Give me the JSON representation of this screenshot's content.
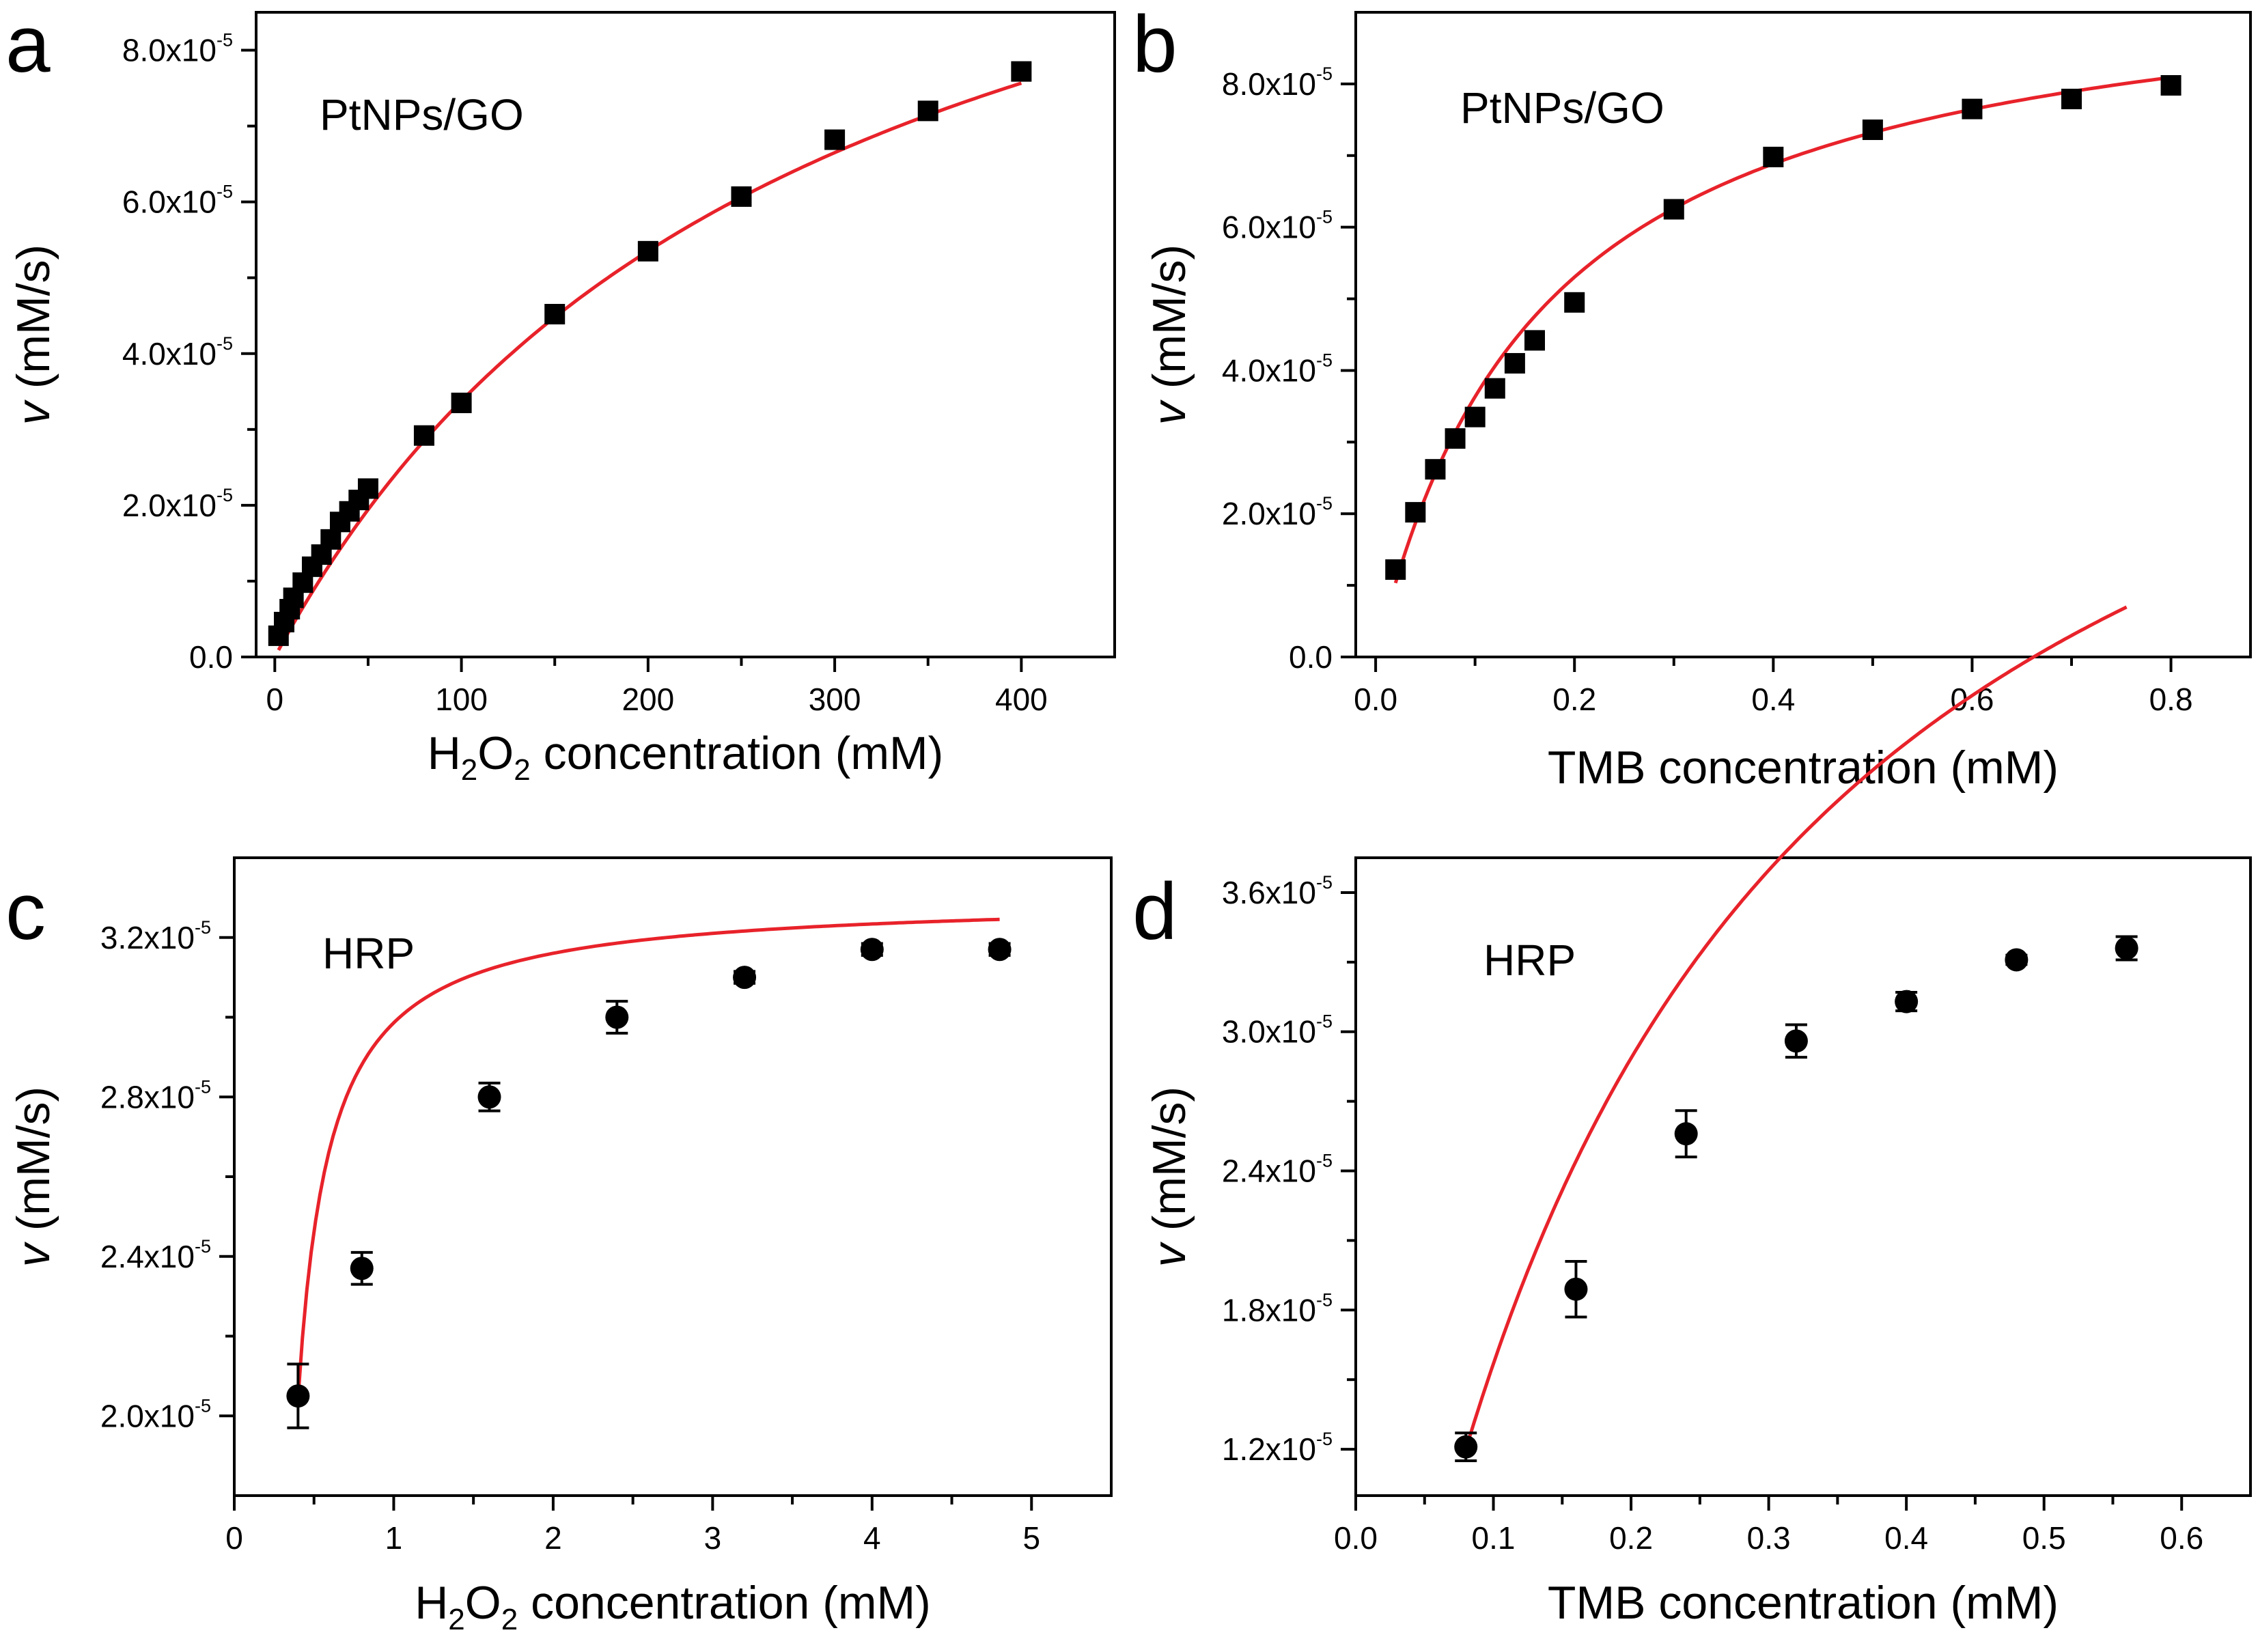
{
  "figure": {
    "charts": [
      {
        "panel": "a",
        "annotation": "PtNPs/GO",
        "x_title_parts": [
          "H",
          "2",
          "O",
          "2",
          " concentration (mM)"
        ],
        "y_title_parts": [
          "v",
          " (mM/s)"
        ],
        "marker": "square"
      },
      {
        "panel": "b",
        "annotation": "PtNPs/GO",
        "x_title_parts": [
          "TMB concentration (mM)"
        ],
        "y_title_parts": [
          "v",
          " (mM/s)"
        ],
        "marker": "square"
      },
      {
        "panel": "c",
        "annotation": "HRP",
        "x_title_parts": [
          "H",
          "2",
          "O",
          "2",
          " concentration (mM)"
        ],
        "y_title_parts": [
          "v",
          " (mM/s)"
        ],
        "marker": "circle"
      },
      {
        "panel": "d",
        "annotation": "HRP",
        "x_title_parts": [
          "TMB concentration (mM)"
        ],
        "y_title_parts": [
          "v",
          " (mM/s)"
        ],
        "marker": "circle"
      }
    ]
  },
  "colors": {
    "fit_line": "#e8222a",
    "markers": "#000000",
    "axes": "#000000",
    "background": "#ffffff"
  },
  "chart_data": [
    {
      "type": "scatter",
      "title": "PtNPs/GO",
      "xlabel": "H2O2 concentration (mM)",
      "ylabel": "v (mM/s)",
      "xlim": [
        -10,
        450
      ],
      "ylim": [
        0,
        8.5e-05
      ],
      "x_ticks": [
        0,
        100,
        200,
        300,
        400
      ],
      "x_tick_labels": [
        "0",
        "100",
        "200",
        "300",
        "400"
      ],
      "y_ticks": [
        0,
        2e-05,
        4e-05,
        6e-05,
        8e-05
      ],
      "y_tick_labels": [
        {
          "mantissa": "0.0",
          "exp": ""
        },
        {
          "mantissa": "2.0x10",
          "exp": "-5"
        },
        {
          "mantissa": "4.0x10",
          "exp": "-5"
        },
        {
          "mantissa": "6.0x10",
          "exp": "-5"
        },
        {
          "mantissa": "8.0x10",
          "exp": "-5"
        }
      ],
      "x_minor_ticks": [
        50,
        150,
        250,
        350
      ],
      "y_minor_ticks": [
        1e-05,
        3e-05,
        5e-05,
        7e-05
      ],
      "series": [
        {
          "name": "PtNPs/GO",
          "marker": "square",
          "x": [
            2,
            5,
            8,
            10,
            15,
            20,
            25,
            30,
            35,
            40,
            45,
            50,
            80,
            100,
            150,
            200,
            250,
            300,
            350,
            400
          ],
          "y": [
            2.8e-06,
            4.6e-06,
            6.3e-06,
            7.8e-06,
            9.8e-06,
            1.19e-05,
            1.35e-05,
            1.55e-05,
            1.78e-05,
            1.92e-05,
            2.07e-05,
            2.22e-05,
            2.92e-05,
            3.35e-05,
            4.52e-05,
            5.35e-05,
            6.07e-05,
            6.82e-05,
            7.2e-05,
            7.72e-05
          ]
        }
      ],
      "fit": {
        "model": "michaelis-menten",
        "vmax": 0.000129,
        "km": 282,
        "x_start": 2,
        "x_end": 400
      }
    },
    {
      "type": "scatter",
      "title": "PtNPs/GO",
      "xlabel": "TMB concentration (mM)",
      "ylabel": "v (mM/s)",
      "xlim": [
        -0.02,
        0.88
      ],
      "ylim": [
        0,
        9e-05
      ],
      "x_ticks": [
        0,
        0.2,
        0.4,
        0.6,
        0.8
      ],
      "x_tick_labels": [
        "0.0",
        "0.2",
        "0.4",
        "0.6",
        "0.8"
      ],
      "y_ticks": [
        0,
        2e-05,
        4e-05,
        6e-05,
        8e-05
      ],
      "y_tick_labels": [
        {
          "mantissa": "0.0",
          "exp": ""
        },
        {
          "mantissa": "2.0x10",
          "exp": "-5"
        },
        {
          "mantissa": "4.0x10",
          "exp": "-5"
        },
        {
          "mantissa": "6.0x10",
          "exp": "-5"
        },
        {
          "mantissa": "8.0x10",
          "exp": "-5"
        }
      ],
      "x_minor_ticks": [
        0.1,
        0.3,
        0.5,
        0.7
      ],
      "y_minor_ticks": [
        1e-05,
        3e-05,
        5e-05,
        7e-05
      ],
      "series": [
        {
          "name": "PtNPs/GO",
          "marker": "square",
          "x": [
            0.02,
            0.04,
            0.06,
            0.08,
            0.1,
            0.12,
            0.14,
            0.16,
            0.2,
            0.3,
            0.4,
            0.5,
            0.6,
            0.7,
            0.8
          ],
          "y": [
            1.22e-05,
            2.02e-05,
            2.62e-05,
            3.05e-05,
            3.35e-05,
            3.75e-05,
            4.1e-05,
            4.42e-05,
            4.95e-05,
            6.25e-05,
            6.98e-05,
            7.36e-05,
            7.65e-05,
            7.79e-05,
            7.98e-05
          ]
        }
      ],
      "fit": {
        "model": "michaelis-menten",
        "vmax": 9.81e-05,
        "km": 0.17,
        "x_start": 0.02,
        "x_end": 0.8
      }
    },
    {
      "type": "scatter",
      "title": "HRP",
      "xlabel": "H2O2 concentration (mM)",
      "ylabel": "v (mM/s)",
      "xlim": [
        0,
        5.5
      ],
      "ylim": [
        1.8e-05,
        3.4e-05
      ],
      "x_ticks": [
        0,
        1,
        2,
        3,
        4,
        5
      ],
      "x_tick_labels": [
        "0",
        "1",
        "2",
        "3",
        "4",
        "5"
      ],
      "y_ticks": [
        2e-05,
        2.4e-05,
        2.8e-05,
        3.2e-05
      ],
      "y_tick_labels": [
        {
          "mantissa": "2.0x10",
          "exp": "-5"
        },
        {
          "mantissa": "2.4x10",
          "exp": "-5"
        },
        {
          "mantissa": "2.8x10",
          "exp": "-5"
        },
        {
          "mantissa": "3.2x10",
          "exp": "-5"
        }
      ],
      "x_minor_ticks": [
        0.5,
        1.5,
        2.5,
        3.5,
        4.5
      ],
      "y_minor_ticks": [
        2.2e-05,
        2.6e-05,
        3e-05
      ],
      "series": [
        {
          "name": "HRP",
          "marker": "circle",
          "x": [
            0.4,
            0.8,
            1.6,
            2.4,
            3.2,
            4.0,
            4.8
          ],
          "y": [
            2.05e-05,
            2.37e-05,
            2.8e-05,
            3e-05,
            3.1e-05,
            3.17e-05,
            3.17e-05
          ],
          "error": [
            8e-07,
            4e-07,
            3.5e-07,
            4e-07,
            1.5e-07,
            1.5e-07,
            1.5e-07
          ]
        }
      ],
      "fit": {
        "model": "shifted-hyperbola",
        "a": 3.3143e-05,
        "b": 0.10718,
        "c": 7.314e-06,
        "x_start": 0.4,
        "x_end": 4.8
      }
    },
    {
      "type": "scatter",
      "title": "HRP",
      "xlabel": "TMB concentration (mM)",
      "ylabel": "v (mM/s)",
      "xlim": [
        0,
        0.65
      ],
      "ylim": [
        1e-05,
        3.75e-05
      ],
      "x_ticks": [
        0,
        0.1,
        0.2,
        0.3,
        0.4,
        0.5,
        0.6
      ],
      "x_tick_labels": [
        "0.0",
        "0.1",
        "0.2",
        "0.3",
        "0.4",
        "0.5",
        "0.6"
      ],
      "y_ticks": [
        1.2e-05,
        1.8e-05,
        2.4e-05,
        3e-05,
        3.6e-05
      ],
      "y_tick_labels": [
        {
          "mantissa": "1.2x10",
          "exp": "-5"
        },
        {
          "mantissa": "1.8x10",
          "exp": "-5"
        },
        {
          "mantissa": "2.4x10",
          "exp": "-5"
        },
        {
          "mantissa": "3.0x10",
          "exp": "-5"
        },
        {
          "mantissa": "3.6x10",
          "exp": "-5"
        }
      ],
      "x_minor_ticks": [
        0.05,
        0.15,
        0.25,
        0.35,
        0.45,
        0.55
      ],
      "y_minor_ticks": [
        1.5e-05,
        2.1e-05,
        2.7e-05,
        3.3e-05
      ],
      "series": [
        {
          "name": "HRP",
          "marker": "circle",
          "x": [
            0.08,
            0.16,
            0.24,
            0.32,
            0.4,
            0.48,
            0.56
          ],
          "y": [
            1.21e-05,
            1.89e-05,
            2.56e-05,
            2.96e-05,
            3.13e-05,
            3.31e-05,
            3.36e-05
          ],
          "error": [
            6e-07,
            1.2e-06,
            1e-06,
            7e-07,
            4e-07,
            2e-07,
            5e-07
          ]
        }
      ],
      "fit": {
        "model": "michaelis-menten-offset",
        "vmax": 5.9e-05,
        "km": 0.3,
        "x0": 0.055,
        "x_start": 0.08,
        "x_end": 0.56
      }
    }
  ]
}
